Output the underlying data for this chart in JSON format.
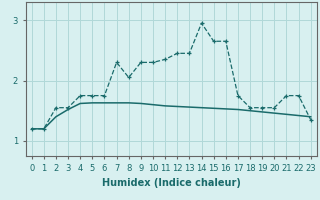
{
  "x": [
    0,
    1,
    2,
    3,
    4,
    5,
    6,
    7,
    8,
    9,
    10,
    11,
    12,
    13,
    14,
    15,
    16,
    17,
    18,
    19,
    20,
    21,
    22,
    23
  ],
  "series1": [
    1.2,
    1.2,
    1.55,
    1.55,
    1.75,
    1.75,
    1.75,
    2.3,
    2.05,
    2.3,
    2.3,
    2.35,
    2.45,
    2.45,
    2.95,
    2.65,
    2.65,
    1.75,
    1.55,
    1.55,
    1.55,
    1.75,
    1.75,
    1.35
  ],
  "series2": [
    1.2,
    1.2,
    1.4,
    1.52,
    1.62,
    1.63,
    1.63,
    1.63,
    1.63,
    1.62,
    1.6,
    1.58,
    1.57,
    1.56,
    1.55,
    1.54,
    1.53,
    1.52,
    1.5,
    1.48,
    1.46,
    1.44,
    1.42,
    1.4
  ],
  "line_color": "#1a6b6b",
  "background_color": "#d8f0f0",
  "grid_color": "#b0d8d8",
  "xlabel": "Humidex (Indice chaleur)",
  "xlabel_fontsize": 7,
  "tick_fontsize": 6,
  "yticks": [
    1,
    2,
    3
  ],
  "ylim": [
    0.75,
    3.3
  ],
  "xlim": [
    -0.5,
    23.5
  ]
}
